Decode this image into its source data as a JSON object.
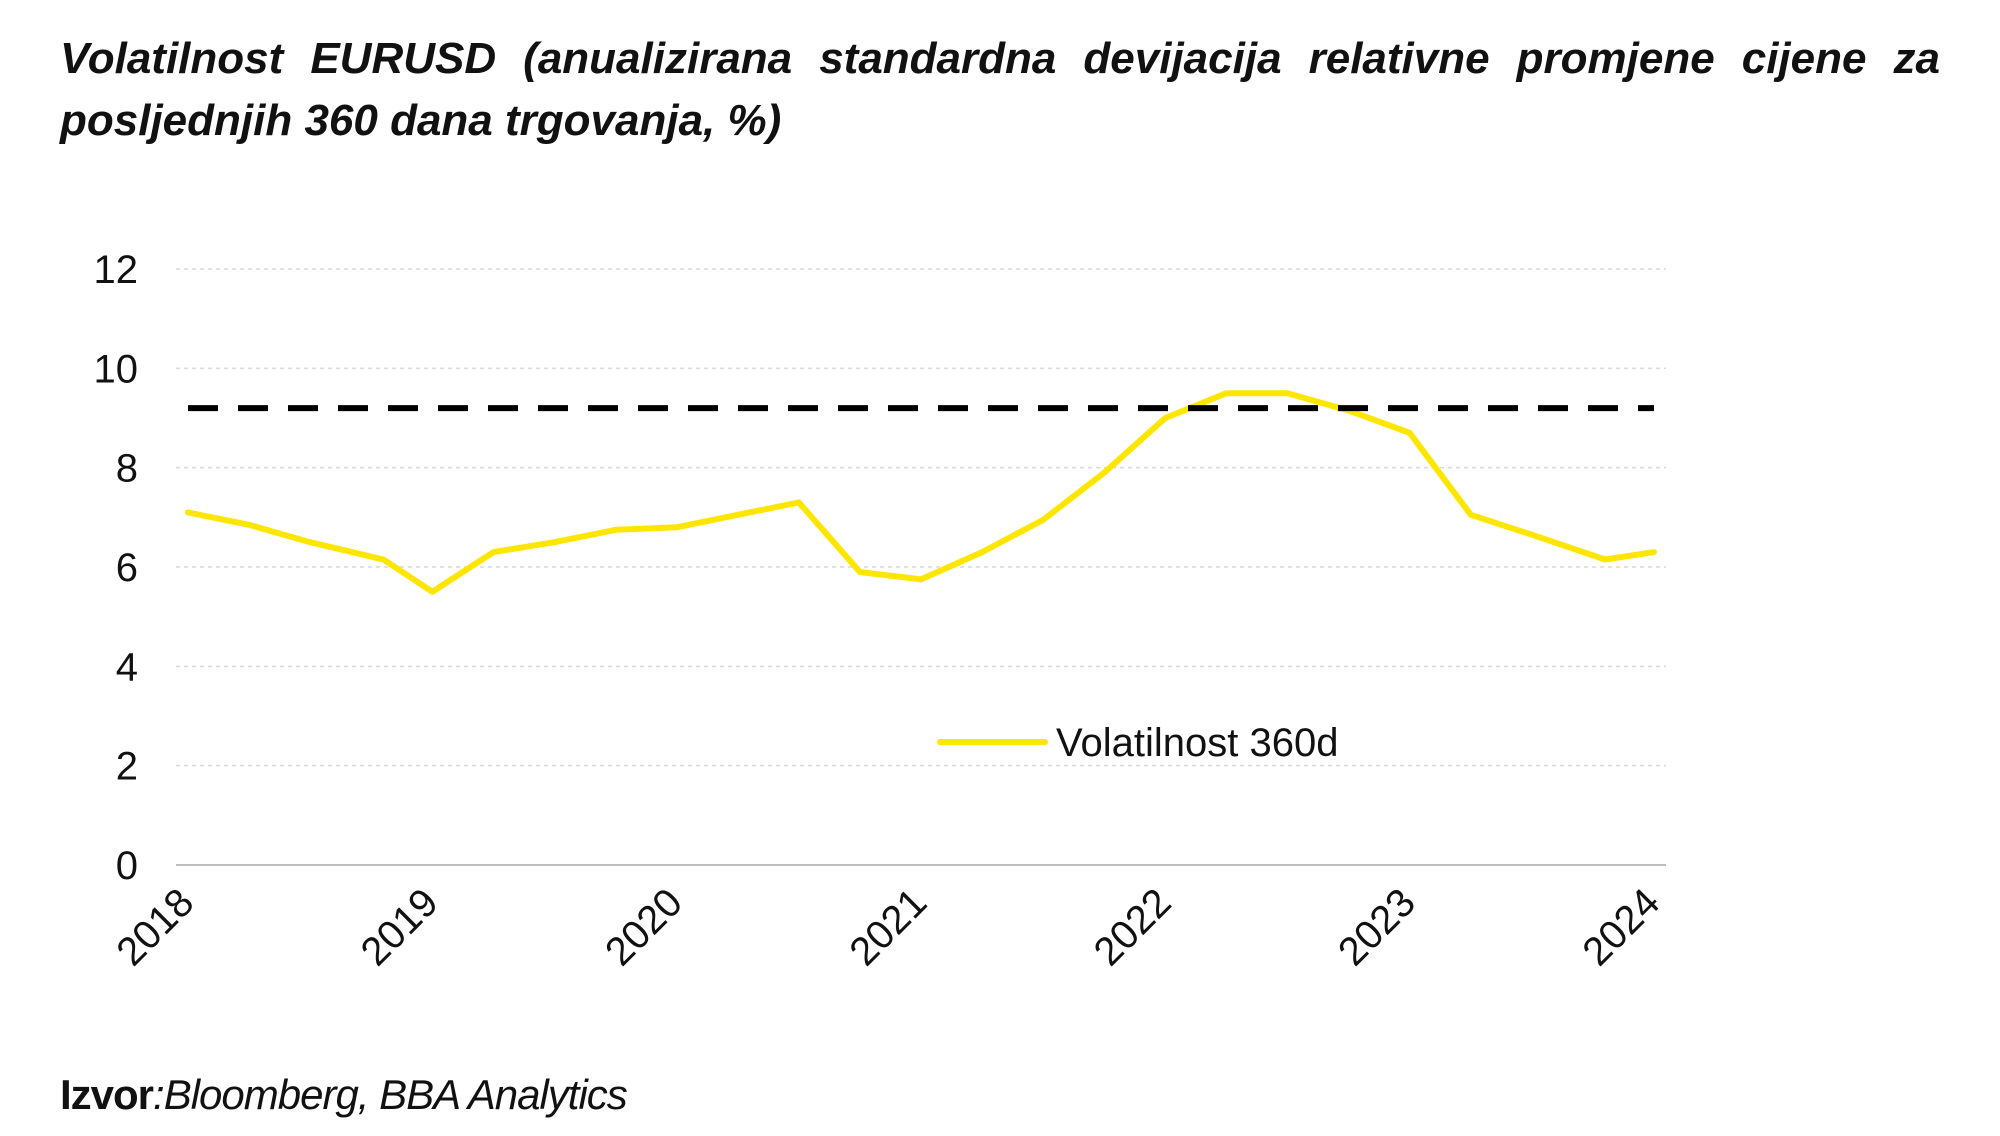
{
  "chart_data": {
    "type": "line",
    "title": "Volatilnost EURUSD (anualizirana standardna devijacija relativne promjene cijene za posljednjih 360 dana trgovanja, %)",
    "xlabel": "",
    "ylabel": "",
    "x_ticks": [
      "2018",
      "2019",
      "2020",
      "2021",
      "2022",
      "2023",
      "2024"
    ],
    "y_ticks": [
      "0",
      "2",
      "4",
      "6",
      "8",
      "10",
      "12"
    ],
    "xlim": [
      2018,
      2024
    ],
    "ylim": [
      0,
      12
    ],
    "grid": true,
    "legend_position": "center",
    "series": [
      {
        "name": "Volatilnost  360d",
        "color": "#FFE600",
        "style": "solid",
        "points": [
          [
            2018.0,
            7.1
          ],
          [
            2018.25,
            6.85
          ],
          [
            2018.5,
            6.5
          ],
          [
            2018.8,
            6.15
          ],
          [
            2019.0,
            5.5
          ],
          [
            2019.25,
            6.3
          ],
          [
            2019.5,
            6.5
          ],
          [
            2019.75,
            6.75
          ],
          [
            2020.0,
            6.8
          ],
          [
            2020.25,
            7.05
          ],
          [
            2020.5,
            7.3
          ],
          [
            2020.75,
            5.9
          ],
          [
            2021.0,
            5.75
          ],
          [
            2021.25,
            6.3
          ],
          [
            2021.5,
            6.95
          ],
          [
            2021.75,
            7.9
          ],
          [
            2022.0,
            9.0
          ],
          [
            2022.25,
            9.5
          ],
          [
            2022.5,
            9.5
          ],
          [
            2022.75,
            9.15
          ],
          [
            2023.0,
            8.7
          ],
          [
            2023.25,
            7.05
          ],
          [
            2023.5,
            6.65
          ],
          [
            2023.8,
            6.15
          ],
          [
            2024.0,
            6.3
          ]
        ]
      },
      {
        "name": "",
        "color": "#000000",
        "style": "dashed",
        "points": [
          [
            2018.0,
            9.2
          ],
          [
            2024.0,
            9.2
          ]
        ]
      }
    ]
  },
  "source": {
    "label": "Izvor",
    "text": ":Bloomberg, BBA Analytics"
  }
}
